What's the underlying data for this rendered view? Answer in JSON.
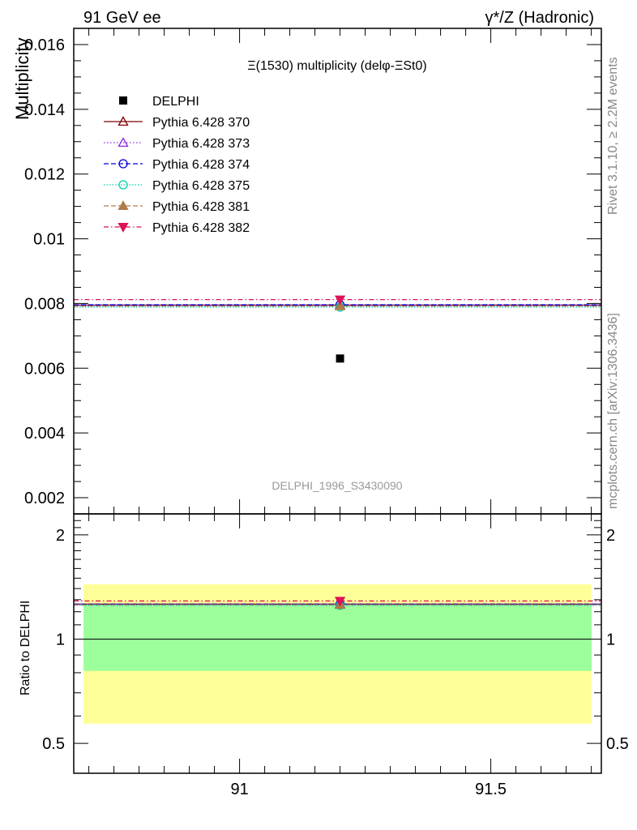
{
  "header": {
    "left": "91 GeV ee",
    "right": "γ*/Z (Hadronic)"
  },
  "side_labels": {
    "rivet": "Rivet 3.1.10, ≥ 2.2M events",
    "source": "mcplots.cern.ch [arXiv:1306.3436]"
  },
  "chart_data": [
    {
      "type": "scatter",
      "title": "Ξ(1530) multiplicity (delφ-ΞSt0)",
      "ylabel": "Multiplicity",
      "watermark": "DELPHI_1996_S3430090",
      "xlim": [
        90.67,
        91.72
      ],
      "ylim": [
        0.0015,
        0.0165
      ],
      "yticks": [
        0.002,
        0.004,
        0.006,
        0.008,
        0.01,
        0.012,
        0.014,
        0.016
      ],
      "ytick_labels": [
        "0.002",
        "0.004",
        "0.006",
        "0.008",
        "0.01",
        "0.012",
        "0.014",
        "0.016"
      ],
      "legend_position": "top-left",
      "data": {
        "name": "DELPHI",
        "x": 91.2,
        "y": 0.0063,
        "color": "#000000",
        "marker": "square"
      },
      "series": [
        {
          "name": "Pythia 6.428 370",
          "y": 0.00795,
          "color": "#7f0000",
          "marker": "triangle-open",
          "dash": ""
        },
        {
          "name": "Pythia 6.428 373",
          "y": 0.00794,
          "color": "#8a2be2",
          "marker": "triangle-open",
          "dash": "1.5,2.5"
        },
        {
          "name": "Pythia 6.428 374",
          "y": 0.00796,
          "color": "#0000dd",
          "marker": "circle-open",
          "dash": "6,3"
        },
        {
          "name": "Pythia 6.428 375",
          "y": 0.00789,
          "color": "#00ccaa",
          "marker": "circle-open",
          "dash": "1.5,2"
        },
        {
          "name": "Pythia 6.428 381",
          "y": 0.00792,
          "color": "#b07a4a",
          "marker": "triangle-filled",
          "dash": "6,3"
        },
        {
          "name": "Pythia 6.428 382",
          "y": 0.00812,
          "color": "#dd1155",
          "marker": "triangle-down-filled",
          "dash": "6,3,1.5,3"
        }
      ]
    },
    {
      "type": "scatter",
      "ylabel": "Ratio to DELPHI",
      "xlim": [
        90.67,
        91.72
      ],
      "ylim": [
        0.41,
        2.3
      ],
      "ylog": true,
      "yticks": [
        0.5,
        1,
        2
      ],
      "ytick_labels": [
        "0.5",
        "1",
        "2"
      ],
      "xticks": [
        91,
        91.5
      ],
      "xtick_labels": [
        "91",
        "91.5"
      ],
      "reference": 1,
      "bands": [
        {
          "name": "total uncertainty",
          "lo": 0.57,
          "hi": 1.44,
          "color": "#ffff99"
        },
        {
          "name": "statistical uncertainty",
          "lo": 0.81,
          "hi": 1.26,
          "color": "#9cff9c"
        }
      ],
      "series": [
        {
          "name": "Pythia 6.428 370",
          "y": 1.262
        },
        {
          "name": "Pythia 6.428 373",
          "y": 1.261
        },
        {
          "name": "Pythia 6.428 374",
          "y": 1.263
        },
        {
          "name": "Pythia 6.428 375",
          "y": 1.252
        },
        {
          "name": "Pythia 6.428 381",
          "y": 1.257
        },
        {
          "name": "Pythia 6.428 382",
          "y": 1.289
        }
      ]
    }
  ]
}
